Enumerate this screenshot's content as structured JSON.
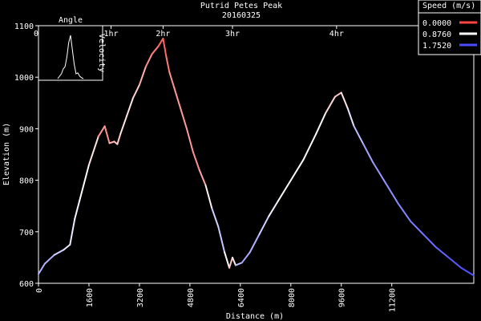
{
  "chart_data": {
    "type": "line",
    "title": "Putrid Petes Peak",
    "subtitle": "20160325",
    "xlabel": "Distance (m)",
    "ylabel": "Elevation (m)",
    "xlim": [
      0,
      13800
    ],
    "ylim": [
      600,
      1100
    ],
    "x_ticks": [
      0,
      1600,
      3200,
      4800,
      6400,
      8000,
      9600,
      11200
    ],
    "y_ticks": [
      600,
      700,
      800,
      900,
      1000,
      1100
    ],
    "time_axis": {
      "ticks": [
        {
          "label": "0h",
          "x": 0
        },
        {
          "label": "1hr",
          "x": 2300
        },
        {
          "label": "2hr",
          "x": 3950
        },
        {
          "label": "3hr",
          "x": 6150
        },
        {
          "label": "4hr",
          "x": 9450
        }
      ]
    },
    "legend": {
      "title": "Speed (m/s)",
      "position": "top-right",
      "entries": [
        {
          "label": "0.0000",
          "color": "#ff4444"
        },
        {
          "label": "0.8760",
          "color": "#ffffff"
        },
        {
          "label": "1.7520",
          "color": "#4b4bff"
        }
      ]
    },
    "series": [
      {
        "x": [
          0,
          200,
          500,
          800,
          1000,
          1150,
          1300,
          1600,
          1900,
          2100,
          2250,
          2400,
          2500,
          2600,
          2800,
          3000,
          3200,
          3400,
          3600,
          3800,
          3950,
          4050,
          4150,
          4300,
          4500,
          4700,
          4900,
          5100,
          5300,
          5500,
          5700,
          5900,
          6050,
          6150,
          6250,
          6450,
          6700,
          7000,
          7300,
          7600,
          8000,
          8400,
          8800,
          9100,
          9400,
          9600,
          9800,
          10000,
          10300,
          10600,
          11000,
          11400,
          11800,
          12200,
          12600,
          13000,
          13400,
          13800
        ],
        "elevation": [
          618,
          638,
          655,
          665,
          675,
          725,
          760,
          830,
          885,
          905,
          872,
          875,
          870,
          890,
          925,
          960,
          985,
          1020,
          1045,
          1060,
          1075,
          1040,
          1010,
          980,
          940,
          900,
          855,
          820,
          790,
          745,
          710,
          660,
          630,
          650,
          635,
          640,
          660,
          695,
          730,
          760,
          800,
          840,
          890,
          930,
          962,
          970,
          940,
          905,
          870,
          835,
          795,
          755,
          720,
          695,
          670,
          650,
          630,
          615
        ],
        "speed": [
          1.2,
          1.3,
          1.2,
          1.0,
          1.0,
          0.95,
          0.9,
          0.9,
          0.6,
          0.2,
          0.5,
          0.6,
          0.6,
          0.7,
          0.8,
          0.7,
          0.6,
          0.4,
          0.3,
          0.2,
          0.1,
          0.2,
          0.3,
          0.4,
          0.4,
          0.4,
          0.4,
          0.3,
          0.6,
          1.0,
          1.2,
          1.1,
          0.7,
          0.5,
          1.1,
          1.3,
          1.3,
          1.2,
          1.0,
          0.9,
          0.9,
          0.9,
          0.9,
          0.8,
          0.6,
          0.6,
          0.9,
          1.1,
          1.3,
          1.35,
          1.4,
          1.45,
          1.5,
          1.55,
          1.6,
          1.65,
          1.7,
          1.75
        ]
      }
    ],
    "inset": {
      "labels": [
        "Angle",
        "Velocity"
      ],
      "values": [
        0,
        0.05,
        0.1,
        0.2,
        0.25,
        0.45,
        0.75,
        0.9,
        0.6,
        0.3,
        0.1,
        0.12,
        0.05,
        0.02,
        0
      ]
    }
  }
}
